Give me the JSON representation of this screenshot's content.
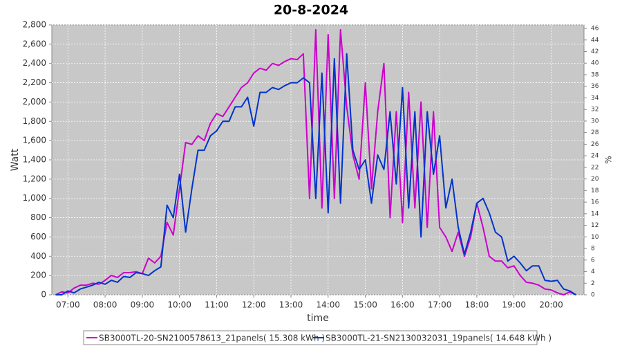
{
  "chart_data": {
    "type": "line",
    "title": "20-8-2024",
    "xlabel": "time",
    "ylabel": "Watt",
    "y2label": "%",
    "x": [
      "06:40",
      "06:50",
      "07:00",
      "07:10",
      "07:20",
      "07:30",
      "07:40",
      "07:50",
      "08:00",
      "08:10",
      "08:20",
      "08:30",
      "08:40",
      "08:50",
      "09:00",
      "09:10",
      "09:20",
      "09:30",
      "09:40",
      "09:50",
      "10:00",
      "10:10",
      "10:20",
      "10:30",
      "10:40",
      "10:50",
      "11:00",
      "11:10",
      "11:20",
      "11:30",
      "11:40",
      "11:50",
      "12:00",
      "12:10",
      "12:20",
      "12:30",
      "12:40",
      "12:50",
      "13:00",
      "13:10",
      "13:20",
      "13:30",
      "13:40",
      "13:50",
      "14:00",
      "14:10",
      "14:20",
      "14:30",
      "14:40",
      "14:50",
      "15:00",
      "15:10",
      "15:20",
      "15:30",
      "15:40",
      "15:50",
      "16:00",
      "16:10",
      "16:20",
      "16:30",
      "16:40",
      "16:50",
      "17:00",
      "17:10",
      "17:20",
      "17:30",
      "17:40",
      "17:50",
      "18:00",
      "18:10",
      "18:20",
      "18:30",
      "18:40",
      "18:50",
      "19:00",
      "19:10",
      "19:20",
      "19:30",
      "19:40",
      "19:50",
      "20:00",
      "20:10",
      "20:20",
      "20:30",
      "20:40"
    ],
    "series": [
      {
        "name": "SB3000TL-20-SN2100578613_21panels( 15.308 kWh )",
        "color": "#cc00cc",
        "values": [
          0,
          30,
          20,
          70,
          100,
          100,
          120,
          110,
          150,
          200,
          180,
          230,
          230,
          240,
          220,
          380,
          330,
          400,
          750,
          620,
          1100,
          1580,
          1560,
          1650,
          1600,
          1780,
          1880,
          1850,
          1950,
          2050,
          2150,
          2200,
          2300,
          2350,
          2330,
          2400,
          2380,
          2420,
          2450,
          2440,
          2500,
          1000,
          2750,
          900,
          2700,
          1000,
          2750,
          1950,
          1450,
          1200,
          2200,
          1100,
          1900,
          2400,
          800,
          1900,
          750,
          2100,
          900,
          2000,
          700,
          1900,
          700,
          600,
          450,
          650,
          400,
          600,
          950,
          700,
          400,
          350,
          350,
          280,
          300,
          200,
          130,
          120,
          100,
          60,
          50,
          20,
          0,
          30,
          0
        ]
      },
      {
        "name": "SB3000TL-21-SN2130032031_19panels( 14.648 kWh )",
        "color": "#0033cc",
        "values": [
          0,
          0,
          40,
          20,
          60,
          80,
          100,
          130,
          110,
          150,
          130,
          190,
          180,
          230,
          220,
          200,
          250,
          290,
          930,
          800,
          1250,
          650,
          1100,
          1500,
          1500,
          1650,
          1700,
          1800,
          1800,
          1950,
          1950,
          2050,
          1750,
          2100,
          2100,
          2150,
          2130,
          2170,
          2200,
          2200,
          2250,
          2200,
          1000,
          2300,
          850,
          2450,
          950,
          2500,
          1500,
          1300,
          1400,
          950,
          1450,
          1300,
          1900,
          1150,
          2150,
          900,
          1900,
          600,
          1900,
          1250,
          1650,
          900,
          1200,
          700,
          420,
          650,
          950,
          1000,
          850,
          650,
          600,
          350,
          400,
          330,
          250,
          300,
          300,
          150,
          140,
          150,
          60,
          40,
          0
        ]
      }
    ],
    "xlim": [
      "06:34",
      "20:53"
    ],
    "xticks": [
      "07:00",
      "08:00",
      "09:00",
      "10:00",
      "11:00",
      "12:00",
      "13:00",
      "14:00",
      "15:00",
      "16:00",
      "17:00",
      "18:00",
      "19:00",
      "20:00"
    ],
    "ylim": [
      0,
      2800
    ],
    "yticks": [
      0,
      200,
      400,
      600,
      800,
      {
        "value": 1000,
        "label": "1,000"
      },
      {
        "value": 1200,
        "label": "1,200"
      },
      {
        "value": 1400,
        "label": "1,400"
      },
      {
        "value": 1600,
        "label": "1,600"
      },
      {
        "value": 1800,
        "label": "1,800"
      },
      {
        "value": 2000,
        "label": "2,000"
      },
      {
        "value": 2200,
        "label": "2,200"
      },
      {
        "value": 2400,
        "label": "2,400"
      },
      {
        "value": 2600,
        "label": "2,600"
      },
      {
        "value": 2800,
        "label": "2,800"
      }
    ],
    "y2lim": [
      0,
      46.6
    ],
    "y2ticks": [
      0,
      2,
      4,
      6,
      8,
      10,
      12,
      14,
      16,
      18,
      20,
      22,
      24,
      26,
      28,
      30,
      32,
      34,
      36,
      38,
      40,
      42,
      44,
      46
    ],
    "grid": true
  }
}
